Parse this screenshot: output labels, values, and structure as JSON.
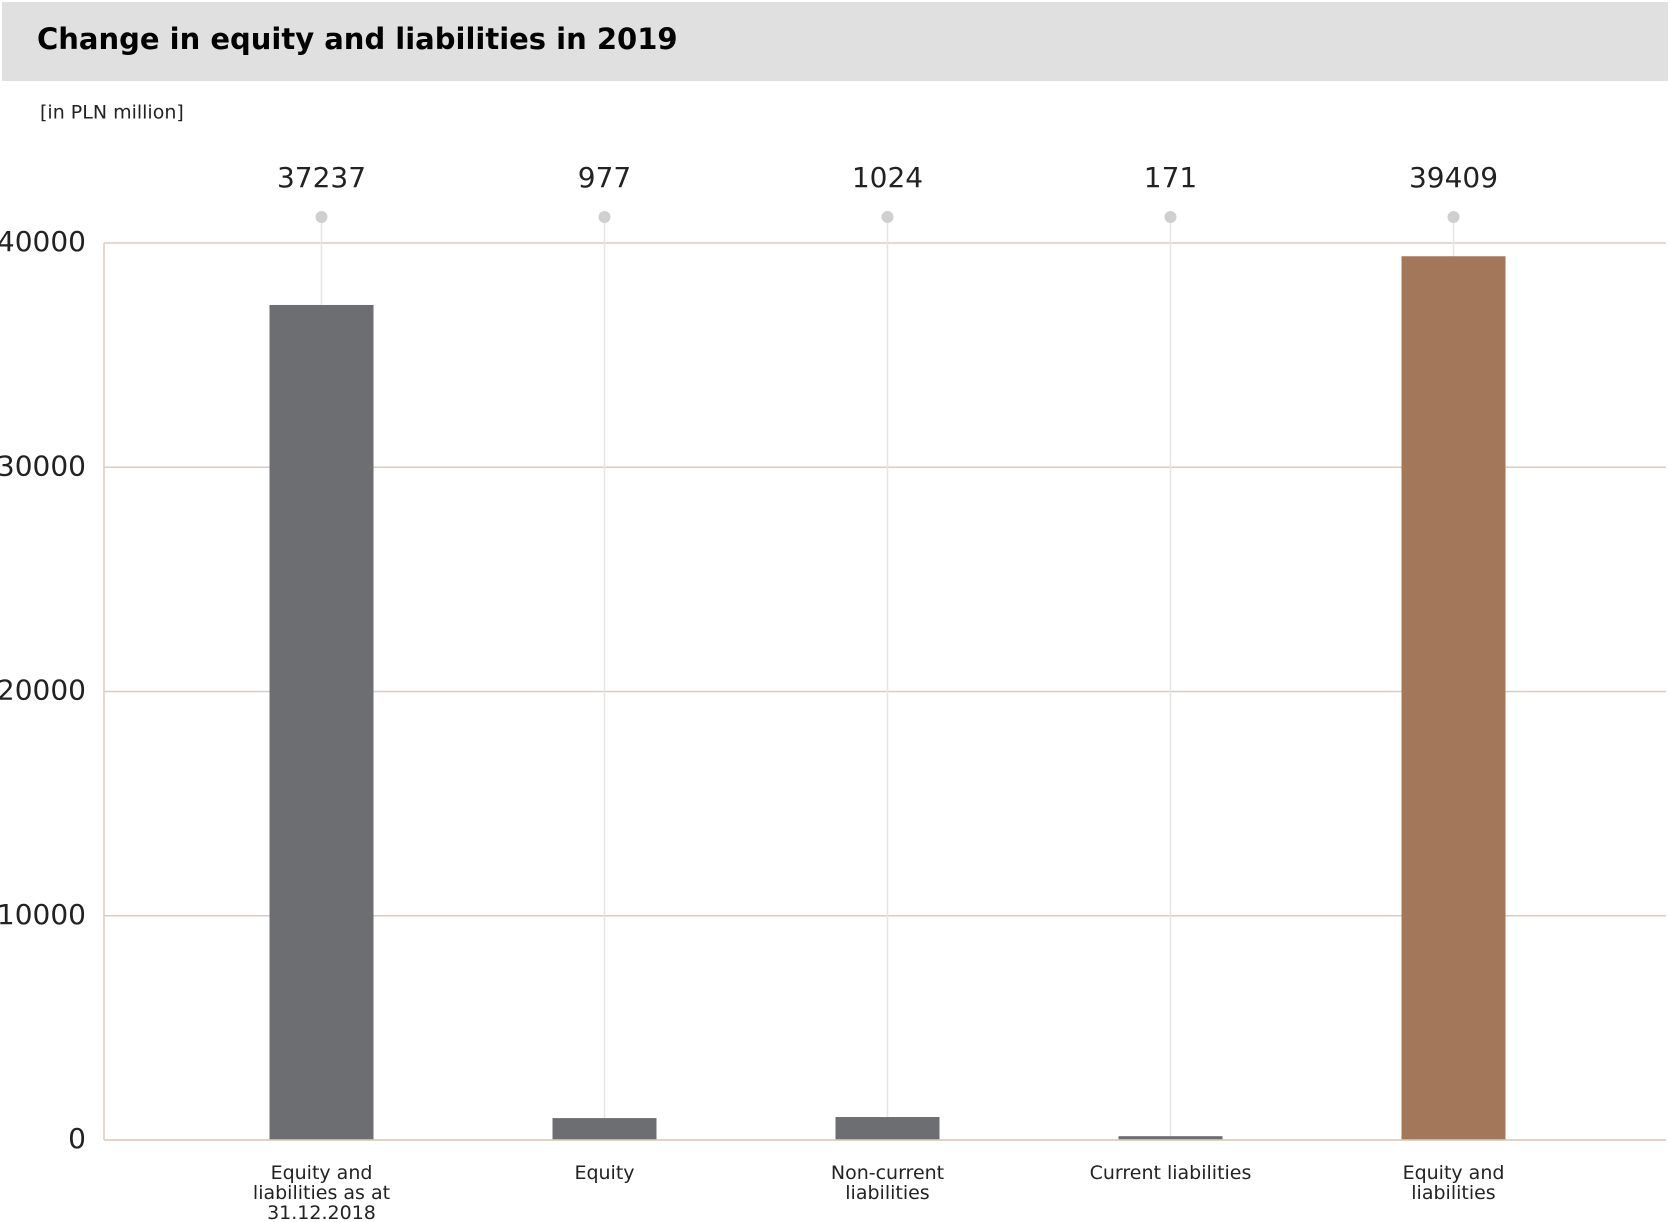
{
  "chart_data": {
    "type": "bar",
    "title": "Change in equity and liabilities in 2019",
    "subtitle": "[in PLN million]",
    "categories": [
      "Equity and liabilities as at 31.12.2018",
      "Equity",
      "Non-current liabilities",
      "Current liabilities",
      "Equity and liabilities"
    ],
    "values": [
      37237,
      977,
      1024,
      171,
      39409
    ],
    "colors": [
      "#6d6e71",
      "#6d6e71",
      "#6d6e71",
      "#6d6e71",
      "#a3775a"
    ],
    "ylim": [
      0,
      40000
    ],
    "yticks": [
      0,
      10000,
      20000,
      30000,
      40000
    ],
    "grid": true
  }
}
